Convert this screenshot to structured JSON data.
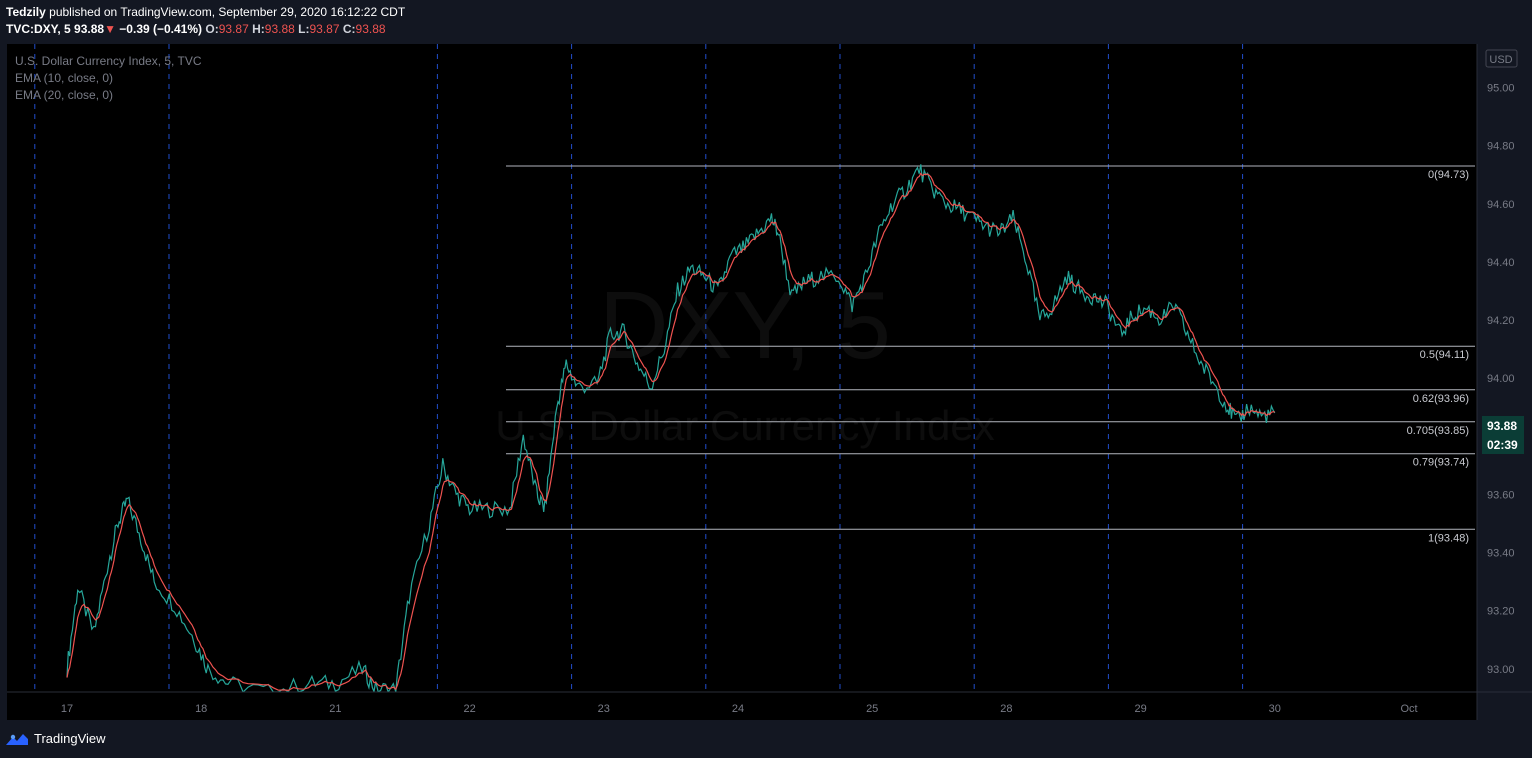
{
  "header": {
    "author": "Tedzily",
    "published": "published on TradingView.com, September 29, 2020 16:12:22 CDT",
    "symbol": "TVC:DXY, 5",
    "last": "93.88",
    "down_arrow": "▼",
    "change": "−0.39 (−0.41%)",
    "o_label": "O:",
    "o": "93.87",
    "h_label": "H:",
    "h": "93.88",
    "l_label": "L:",
    "l": "93.87",
    "c_label": "C:",
    "c": "93.88"
  },
  "legend": {
    "title": "U.S. Dollar Currency Index, 5, TVC",
    "ema1": "EMA (10, close, 0)",
    "ema2": "EMA (20, close, 0)"
  },
  "watermark": {
    "symbol": "DXY, 5",
    "name": "U.S. Dollar Currency Index"
  },
  "footer": {
    "brand": "TradingView",
    "logo_icon": "tradingview-logo-icon"
  },
  "colors": {
    "background": "#131722",
    "price_line": "#26a69a",
    "ema_line": "#ef5350",
    "fib_line": "#b2b5be",
    "session_line": "#2962ff",
    "price_label_bg": "#0b3d36",
    "axis_text": "#787b86"
  },
  "chart_data": {
    "type": "line",
    "title": "",
    "currency": "USD",
    "last_price": "93.88",
    "countdown": "02:39",
    "ylim": [
      92.92,
      95.15
    ],
    "y_ticks": [
      "95.00",
      "94.80",
      "94.60",
      "94.40",
      "94.20",
      "94.00",
      "93.60",
      "93.40",
      "93.20",
      "93.00"
    ],
    "x_ticks": [
      "17",
      "18",
      "21",
      "22",
      "23",
      "24",
      "25",
      "28",
      "29",
      "30",
      "Oct"
    ],
    "fib_levels": [
      {
        "label": "0(94.73)",
        "value": 94.73
      },
      {
        "label": "0.5(94.11)",
        "value": 94.11
      },
      {
        "label": "0.62(93.96)",
        "value": 93.96
      },
      {
        "label": "0.705(93.85)",
        "value": 93.85
      },
      {
        "label": "0.79(93.74)",
        "value": 93.74
      },
      {
        "label": "1(93.48)",
        "value": 93.48
      }
    ],
    "series": [
      {
        "values": [
          [
            0,
            93.0
          ],
          [
            0.08,
            93.28
          ],
          [
            0.2,
            93.12
          ],
          [
            0.3,
            93.35
          ],
          [
            0.38,
            93.5
          ],
          [
            0.45,
            93.58
          ],
          [
            0.55,
            93.45
          ],
          [
            0.65,
            93.3
          ],
          [
            0.8,
            93.22
          ],
          [
            0.95,
            93.1
          ],
          [
            1.05,
            93.0
          ],
          [
            1.2,
            92.95
          ],
          [
            1.5,
            92.92
          ],
          [
            1.8,
            92.95
          ],
          [
            2.0,
            92.95
          ],
          [
            2.2,
            93.0
          ],
          [
            2.3,
            92.93
          ],
          [
            2.45,
            92.93
          ],
          [
            2.55,
            93.25
          ],
          [
            2.7,
            93.5
          ],
          [
            2.8,
            93.7
          ],
          [
            2.9,
            93.6
          ],
          [
            3.0,
            93.55
          ],
          [
            3.15,
            93.55
          ],
          [
            3.3,
            93.55
          ],
          [
            3.4,
            93.8
          ],
          [
            3.5,
            93.6
          ],
          [
            3.56,
            93.55
          ],
          [
            3.65,
            93.9
          ],
          [
            3.72,
            94.05
          ],
          [
            3.8,
            93.97
          ],
          [
            3.95,
            93.98
          ],
          [
            4.05,
            94.15
          ],
          [
            4.15,
            94.16
          ],
          [
            4.25,
            94.05
          ],
          [
            4.35,
            93.97
          ],
          [
            4.45,
            94.1
          ],
          [
            4.55,
            94.3
          ],
          [
            4.65,
            94.38
          ],
          [
            4.75,
            94.35
          ],
          [
            4.85,
            94.3
          ],
          [
            4.95,
            94.42
          ],
          [
            5.05,
            94.45
          ],
          [
            5.15,
            94.5
          ],
          [
            5.25,
            94.55
          ],
          [
            5.3,
            94.5
          ],
          [
            5.4,
            94.28
          ],
          [
            5.5,
            94.33
          ],
          [
            5.6,
            94.35
          ],
          [
            5.75,
            94.35
          ],
          [
            5.85,
            94.25
          ],
          [
            5.95,
            94.35
          ],
          [
            6.05,
            94.5
          ],
          [
            6.15,
            94.6
          ],
          [
            6.25,
            94.65
          ],
          [
            6.35,
            94.72
          ],
          [
            6.45,
            94.65
          ],
          [
            6.55,
            94.6
          ],
          [
            6.65,
            94.58
          ],
          [
            6.75,
            94.55
          ],
          [
            6.85,
            94.52
          ],
          [
            6.95,
            94.5
          ],
          [
            7.05,
            94.55
          ],
          [
            7.15,
            94.4
          ],
          [
            7.25,
            94.2
          ],
          [
            7.35,
            94.25
          ],
          [
            7.45,
            94.35
          ],
          [
            7.55,
            94.3
          ],
          [
            7.65,
            94.28
          ],
          [
            7.75,
            94.25
          ],
          [
            7.85,
            94.15
          ],
          [
            7.95,
            94.22
          ],
          [
            8.05,
            94.24
          ],
          [
            8.15,
            94.2
          ],
          [
            8.25,
            94.25
          ],
          [
            8.35,
            94.15
          ],
          [
            8.45,
            94.05
          ],
          [
            8.55,
            93.98
          ],
          [
            8.65,
            93.9
          ],
          [
            8.72,
            93.85
          ],
          [
            8.8,
            93.9
          ],
          [
            8.9,
            93.87
          ],
          [
            9.0,
            93.88
          ]
        ]
      }
    ]
  }
}
